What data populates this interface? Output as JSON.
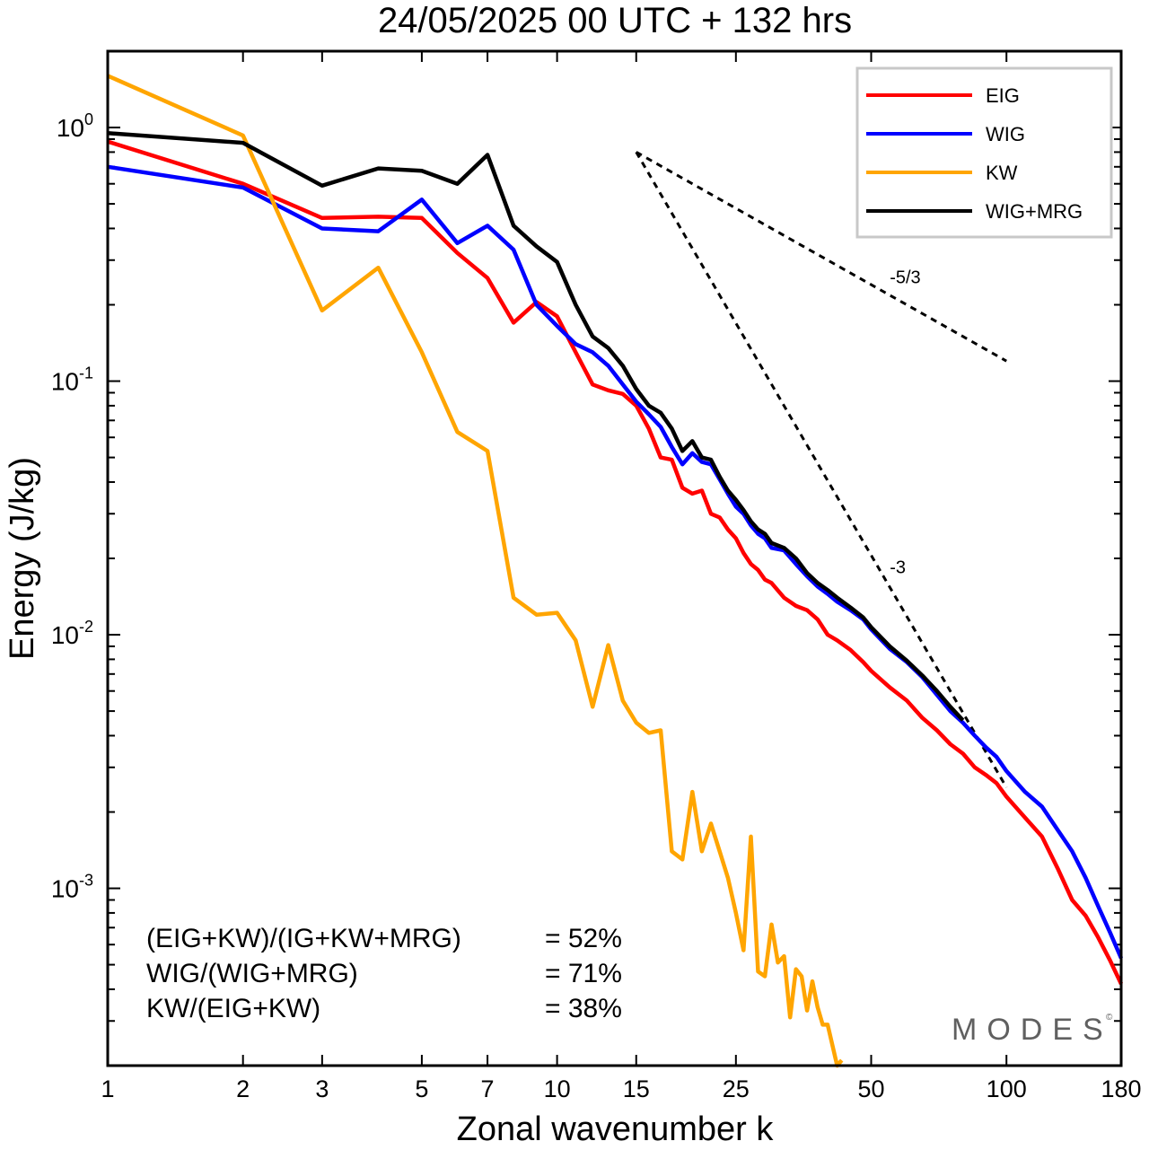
{
  "chart_data": {
    "type": "line",
    "title": "24/05/2025  00 UTC  + 132 hrs",
    "xlabel": "Zonal wavenumber k",
    "ylabel": "Energy (J/kg)",
    "x_scale": "log",
    "y_scale": "log",
    "xlim": [
      1,
      180
    ],
    "ylim": [
      0.0002,
      2.0
    ],
    "x_ticks": [
      1,
      2,
      3,
      5,
      7,
      10,
      15,
      25,
      50,
      100,
      180
    ],
    "y_ticks": [
      {
        "value": 1,
        "base": "10",
        "exp": "0"
      },
      {
        "value": 0.1,
        "base": "10",
        "exp": "-1"
      },
      {
        "value": 0.01,
        "base": "10",
        "exp": "-2"
      },
      {
        "value": 0.001,
        "base": "10",
        "exp": "-3"
      }
    ],
    "legend_position": "top-right",
    "series": [
      {
        "name": "EIG",
        "color": "#ff0000",
        "x": [
          1,
          2,
          3,
          4,
          5,
          6,
          7,
          8,
          9,
          10,
          11,
          12,
          13,
          14,
          15,
          16,
          17,
          18,
          19,
          20,
          21,
          22,
          23,
          24,
          25,
          26,
          27,
          28,
          29,
          30,
          32,
          34,
          36,
          38,
          40,
          42,
          45,
          48,
          50,
          55,
          60,
          65,
          70,
          75,
          80,
          85,
          90,
          95,
          100,
          110,
          120,
          130,
          140,
          150,
          160,
          170,
          180
        ],
        "values": [
          0.88,
          0.6,
          0.44,
          0.445,
          0.44,
          0.32,
          0.255,
          0.17,
          0.205,
          0.18,
          0.13,
          0.097,
          0.092,
          0.089,
          0.08,
          0.065,
          0.05,
          0.049,
          0.038,
          0.036,
          0.037,
          0.03,
          0.029,
          0.026,
          0.024,
          0.021,
          0.019,
          0.018,
          0.0165,
          0.016,
          0.014,
          0.013,
          0.0125,
          0.0115,
          0.01,
          0.0095,
          0.0087,
          0.0078,
          0.0072,
          0.0062,
          0.0055,
          0.0047,
          0.0042,
          0.0037,
          0.0034,
          0.003,
          0.0028,
          0.0026,
          0.0023,
          0.0019,
          0.0016,
          0.0012,
          0.0009,
          0.00078,
          0.00064,
          0.00052,
          0.00042
        ]
      },
      {
        "name": "WIG",
        "color": "#0000ff",
        "x": [
          1,
          2,
          3,
          4,
          5,
          6,
          7,
          8,
          9,
          10,
          11,
          12,
          13,
          14,
          15,
          16,
          17,
          18,
          19,
          20,
          21,
          22,
          23,
          24,
          25,
          26,
          27,
          28,
          29,
          30,
          32,
          34,
          36,
          38,
          40,
          42,
          45,
          48,
          50,
          55,
          60,
          65,
          70,
          75,
          80,
          85,
          90,
          95,
          100,
          110,
          120,
          130,
          140,
          150,
          160,
          170,
          180
        ],
        "values": [
          0.7,
          0.58,
          0.4,
          0.39,
          0.52,
          0.35,
          0.41,
          0.33,
          0.2,
          0.165,
          0.14,
          0.13,
          0.115,
          0.097,
          0.083,
          0.074,
          0.066,
          0.055,
          0.047,
          0.052,
          0.048,
          0.047,
          0.041,
          0.036,
          0.032,
          0.03,
          0.027,
          0.025,
          0.024,
          0.022,
          0.0215,
          0.019,
          0.017,
          0.0155,
          0.0145,
          0.0135,
          0.0125,
          0.0115,
          0.0105,
          0.0088,
          0.0078,
          0.0068,
          0.0058,
          0.005,
          0.0045,
          0.004,
          0.0036,
          0.0033,
          0.0029,
          0.0024,
          0.0021,
          0.0017,
          0.0014,
          0.0011,
          0.00085,
          0.00067,
          0.00053
        ]
      },
      {
        "name": "KW",
        "color": "#ffa500",
        "x": [
          1,
          2,
          3,
          4,
          5,
          6,
          7,
          8,
          9,
          10,
          11,
          12,
          13,
          14,
          15,
          16,
          17,
          18,
          19,
          20,
          21,
          22,
          23,
          24,
          25,
          26,
          27,
          28,
          29,
          30,
          31,
          32,
          33,
          34,
          35,
          36,
          37,
          38,
          39,
          40,
          41,
          42,
          43
        ],
        "values": [
          1.6,
          0.93,
          0.19,
          0.28,
          0.13,
          0.063,
          0.053,
          0.014,
          0.012,
          0.0122,
          0.0095,
          0.0052,
          0.0091,
          0.0055,
          0.0045,
          0.0041,
          0.0042,
          0.0014,
          0.0013,
          0.0024,
          0.0014,
          0.0018,
          0.0014,
          0.0011,
          0.0008,
          0.00057,
          0.0016,
          0.00047,
          0.00045,
          0.00072,
          0.00051,
          0.00054,
          0.00031,
          0.00048,
          0.00045,
          0.00033,
          0.00043,
          0.00034,
          0.00029,
          0.00029,
          0.00024,
          0.0002,
          0.00021
        ]
      },
      {
        "name": "WIG+MRG",
        "color": "#000000",
        "x": [
          1,
          2,
          3,
          4,
          5,
          6,
          7,
          8,
          9,
          10,
          11,
          12,
          13,
          14,
          15,
          16,
          17,
          18,
          19,
          20,
          21,
          22,
          23,
          24,
          25,
          26,
          27,
          28,
          29,
          30,
          32,
          34,
          36,
          38,
          40,
          42,
          45,
          48,
          50,
          55,
          60,
          65,
          70,
          75,
          80
        ],
        "values": [
          0.95,
          0.87,
          0.59,
          0.69,
          0.675,
          0.6,
          0.78,
          0.41,
          0.34,
          0.295,
          0.2,
          0.15,
          0.135,
          0.115,
          0.093,
          0.08,
          0.075,
          0.065,
          0.053,
          0.058,
          0.05,
          0.049,
          0.042,
          0.037,
          0.034,
          0.031,
          0.028,
          0.026,
          0.025,
          0.023,
          0.022,
          0.02,
          0.0175,
          0.016,
          0.015,
          0.014,
          0.0128,
          0.0117,
          0.0107,
          0.009,
          0.0079,
          0.0069,
          0.006,
          0.0052,
          0.0046
        ]
      }
    ],
    "reference_lines": [
      {
        "label": "-5/3",
        "x": [
          15,
          100
        ],
        "values": [
          0.8,
          0.12
        ]
      },
      {
        "label": "-3",
        "x": [
          15,
          100
        ],
        "values": [
          0.8,
          0.0025
        ]
      }
    ],
    "stats": [
      {
        "label": "(EIG+KW)/(IG+KW+MRG)",
        "value": "= 52%"
      },
      {
        "label": "WIG/(WIG+MRG)",
        "value": "= 71%"
      },
      {
        "label": "KW/(EIG+KW)",
        "value": "= 38%"
      }
    ],
    "watermark": "MODES",
    "watermark_mark": "©"
  }
}
